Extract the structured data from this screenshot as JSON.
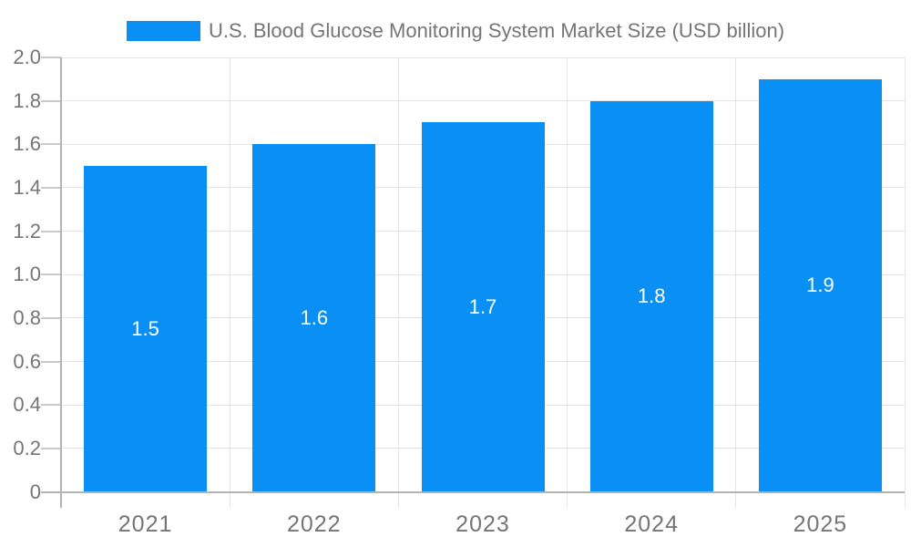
{
  "legend": {
    "items": [
      {
        "label": "U.S. Blood Glucose Monitoring System Market Size (USD billion)",
        "color": "#0a8ff4"
      }
    ]
  },
  "colors": {
    "bar": "#0a8ff4",
    "gridline": "#e4e4e4",
    "axis": "#b3b3b3",
    "tick": "#c9c9c9",
    "axis_text": "#757575",
    "data_label": "#ffffff",
    "background": "#ffffff"
  },
  "chart_data": {
    "type": "bar",
    "title": "U.S. Blood Glucose Monitoring System Market Size (USD billion)",
    "xlabel": "",
    "ylabel": "",
    "categories": [
      "2021",
      "2022",
      "2023",
      "2024",
      "2025"
    ],
    "values": [
      1.5,
      1.6,
      1.7,
      1.8,
      1.9
    ],
    "value_labels": [
      "1.5",
      "1.6",
      "1.7",
      "1.8",
      "1.9"
    ],
    "ylim": [
      0,
      2.0
    ],
    "ytick_step": 0.2,
    "ytick_labels": [
      "0",
      "0.2",
      "0.4",
      "0.6",
      "0.8",
      "1.0",
      "1.2",
      "1.4",
      "1.6",
      "1.8",
      "2.0"
    ],
    "grid": true,
    "legend_position": "top",
    "data_label_position": "center"
  }
}
